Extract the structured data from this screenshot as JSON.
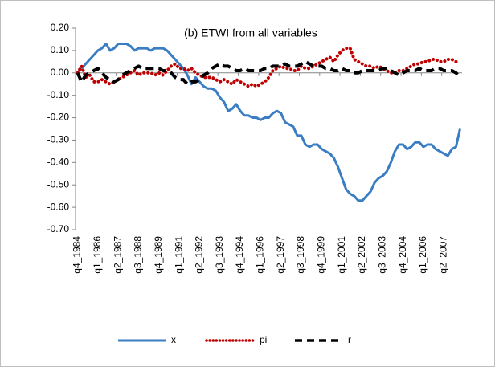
{
  "chart_data": {
    "type": "line",
    "title": "(b) ETWI from all variables",
    "categories": [
      "q4_1984",
      null,
      null,
      null,
      null,
      "q1_1986",
      null,
      null,
      null,
      null,
      "q2_1987",
      null,
      null,
      null,
      null,
      "q3_1988",
      null,
      null,
      null,
      null,
      "q4_1989",
      null,
      null,
      null,
      null,
      "q1_1991",
      null,
      null,
      null,
      null,
      "q2_1992",
      null,
      null,
      null,
      null,
      "q3_1993",
      null,
      null,
      null,
      null,
      "q4_1994",
      null,
      null,
      null,
      null,
      "q1_1996",
      null,
      null,
      null,
      null,
      "q2_1997",
      null,
      null,
      null,
      null,
      "q3_1998",
      null,
      null,
      null,
      null,
      "q4_1999",
      null,
      null,
      null,
      null,
      "q1_2001",
      null,
      null,
      null,
      null,
      "q2_2002",
      null,
      null,
      null,
      null,
      "q3_2003",
      null,
      null,
      null,
      null,
      "q4_2004",
      null,
      null,
      null,
      null,
      "q1_2006",
      null,
      null,
      null,
      null,
      "q2_2007",
      null,
      null,
      null,
      null
    ],
    "series": [
      {
        "name": "x",
        "color": "#3a7dc2",
        "style": "solid",
        "values": [
          0,
          0.02,
          0.04,
          0.06,
          0.08,
          0.1,
          0.11,
          0.13,
          0.1,
          0.11,
          0.13,
          0.13,
          0.13,
          0.12,
          0.1,
          0.11,
          0.11,
          0.11,
          0.1,
          0.11,
          0.11,
          0.11,
          0.1,
          0.08,
          0.06,
          0.04,
          0.02,
          -0.01,
          -0.05,
          -0.02,
          -0.04,
          -0.06,
          -0.07,
          -0.07,
          -0.08,
          -0.11,
          -0.13,
          -0.17,
          -0.16,
          -0.14,
          -0.17,
          -0.19,
          -0.19,
          -0.2,
          -0.2,
          -0.21,
          -0.2,
          -0.2,
          -0.18,
          -0.17,
          -0.18,
          -0.22,
          -0.23,
          -0.24,
          -0.28,
          -0.28,
          -0.32,
          -0.33,
          -0.32,
          -0.32,
          -0.34,
          -0.35,
          -0.36,
          -0.38,
          -0.42,
          -0.47,
          -0.52,
          -0.54,
          -0.55,
          -0.57,
          -0.57,
          -0.55,
          -0.53,
          -0.49,
          -0.47,
          -0.46,
          -0.44,
          -0.4,
          -0.35,
          -0.32,
          -0.32,
          -0.34,
          -0.33,
          -0.31,
          -0.31,
          -0.33,
          -0.32,
          -0.32,
          -0.34,
          -0.35,
          -0.36,
          -0.37,
          -0.34,
          -0.33,
          -0.25
        ]
      },
      {
        "name": "pi",
        "color": "#c00000",
        "style": "dotted",
        "values": [
          0,
          0.03,
          -0.02,
          -0.01,
          -0.04,
          -0.04,
          -0.03,
          -0.04,
          -0.05,
          -0.04,
          -0.03,
          -0.02,
          -0.01,
          0,
          0.01,
          -0.01,
          0,
          0,
          0,
          -0.01,
          0,
          -0.01,
          0.01,
          0.03,
          0.04,
          0.02,
          0.02,
          0.01,
          0.02,
          0,
          -0.01,
          -0.02,
          -0.02,
          -0.02,
          -0.03,
          -0.04,
          -0.03,
          -0.04,
          -0.05,
          -0.03,
          -0.04,
          -0.05,
          -0.06,
          -0.05,
          -0.06,
          -0.05,
          -0.04,
          -0.02,
          0.01,
          0.02,
          0.03,
          0.02,
          0.02,
          0.01,
          0.01,
          0.03,
          0.02,
          0.02,
          0.03,
          0.04,
          0.05,
          0.06,
          0.07,
          0.05,
          0.08,
          0.1,
          0.11,
          0.11,
          0.06,
          0.05,
          0.04,
          0.03,
          0.03,
          0.02,
          0.03,
          0.02,
          0.01,
          0,
          0,
          0.01,
          0.01,
          0.02,
          0.03,
          0.04,
          0.04,
          0.05,
          0.05,
          0.06,
          0.06,
          0.05,
          0.05,
          0.06,
          0.06,
          0.05,
          0.05
        ]
      },
      {
        "name": "r",
        "color": "#000000",
        "style": "dashed",
        "values": [
          0,
          -0.04,
          -0.01,
          0,
          0.01,
          0.02,
          0,
          -0.02,
          -0.03,
          -0.04,
          -0.03,
          -0.01,
          0,
          0.01,
          0.02,
          0.03,
          0.02,
          0.02,
          0.02,
          0.02,
          0.02,
          0.01,
          0.01,
          0,
          -0.02,
          -0.03,
          -0.03,
          -0.05,
          -0.04,
          -0.04,
          -0.03,
          -0.01,
          0,
          0.02,
          0.03,
          0.04,
          0.03,
          0.03,
          0.02,
          0.01,
          0.01,
          0.02,
          0.01,
          0.01,
          0.01,
          0.01,
          0.02,
          0.02,
          0.03,
          0.03,
          0.03,
          0.04,
          0.03,
          0.03,
          0.03,
          0.04,
          0.05,
          0.04,
          0.03,
          0.03,
          0.03,
          0.02,
          0.02,
          0.01,
          0.01,
          0.02,
          0.01,
          0.01,
          0,
          0,
          0.01,
          0.01,
          0.01,
          0.01,
          0.01,
          0.02,
          0.02,
          0.01,
          0,
          -0.01,
          0,
          0.01,
          0.01,
          0.01,
          0.02,
          0.01,
          0.01,
          0.01,
          0.02,
          0.02,
          0.01,
          0.01,
          0.01,
          0,
          -0.02
        ]
      }
    ],
    "ylim": [
      -0.7,
      0.2
    ],
    "yticks": [
      {
        "value": -0.7,
        "label": "-0.70"
      },
      {
        "value": -0.6,
        "label": "-0.60"
      },
      {
        "value": -0.5,
        "label": "-0.50"
      },
      {
        "value": -0.4,
        "label": "-0.40"
      },
      {
        "value": -0.3,
        "label": "-0.30"
      },
      {
        "value": -0.2,
        "label": "-0.20"
      },
      {
        "value": -0.1,
        "label": "-0.10"
      },
      {
        "value": 0,
        "label": "0.00"
      },
      {
        "value": 0.1,
        "label": "0.10"
      },
      {
        "value": 0.2,
        "label": "0.20"
      }
    ],
    "grid": false,
    "legend": "bottom"
  }
}
